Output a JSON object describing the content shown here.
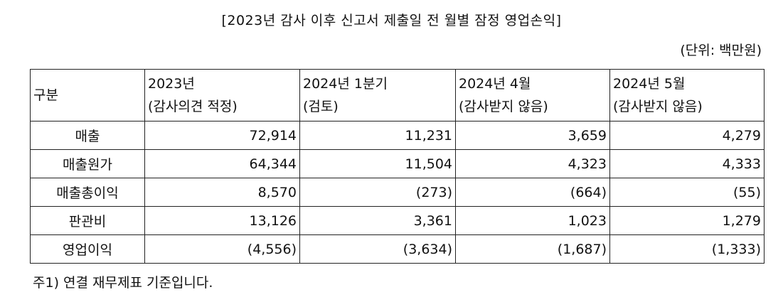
{
  "title": "[2023년 감사 이후 신고서 제출일 전 월별 잠정 영업손익]",
  "unit": "(단위: 백만원)",
  "table": {
    "header": [
      [
        "구분"
      ],
      [
        "2023년",
        "(감사의견 적정)"
      ],
      [
        "2024년 1분기",
        "(검토)"
      ],
      [
        "2024년 4월",
        "(감사받지 않음)"
      ],
      [
        "2024년 5월",
        "(감사받지 않음)"
      ]
    ],
    "rows": [
      [
        "매출",
        "72,914",
        "11,231",
        "3,659",
        "4,279"
      ],
      [
        "매출원가",
        "64,344",
        "11,504",
        "4,323",
        "4,333"
      ],
      [
        "매출총이익",
        "8,570",
        "(273)",
        "(664)",
        "(55)"
      ],
      [
        "판관비",
        "13,126",
        "3,361",
        "1,023",
        "1,279"
      ],
      [
        "영업이익",
        "(4,556)",
        "(3,634)",
        "(1,687)",
        "(1,333)"
      ]
    ]
  },
  "note": "주1) 연결 재무제표 기준입니다."
}
